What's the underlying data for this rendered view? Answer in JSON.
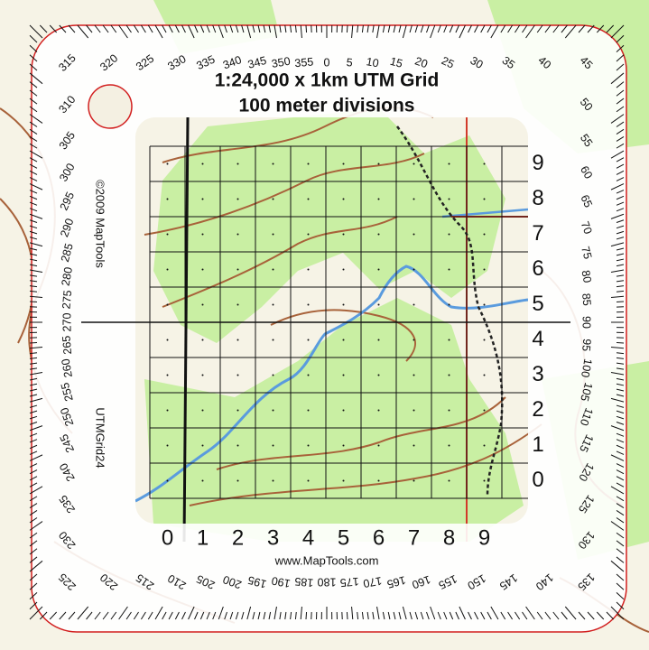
{
  "header": {
    "title": "1:24,000 x 1km UTM Grid",
    "subtitle": "100 meter divisions"
  },
  "copyright": "©2009 MapTools",
  "product": "UTMGrid24",
  "url": "www.MapTools.com",
  "grid": {
    "columns": [
      0,
      1,
      2,
      3,
      4,
      5,
      6,
      7,
      8,
      9
    ],
    "rows": [
      0,
      1,
      2,
      3,
      4,
      5,
      6,
      7,
      8,
      9
    ]
  },
  "degree_labels": [
    0,
    5,
    10,
    15,
    20,
    25,
    30,
    35,
    40,
    45,
    50,
    55,
    60,
    65,
    70,
    75,
    80,
    85,
    90,
    95,
    100,
    105,
    110,
    115,
    120,
    125,
    130,
    135,
    140,
    145,
    150,
    155,
    160,
    165,
    170,
    175,
    180,
    185,
    190,
    195,
    200,
    205,
    210,
    215,
    220,
    225,
    230,
    235,
    240,
    245,
    250,
    255,
    260,
    265,
    270,
    275,
    280,
    285,
    290,
    295,
    300,
    305,
    310,
    315,
    320,
    325,
    330,
    335,
    340,
    345,
    350,
    355
  ]
}
